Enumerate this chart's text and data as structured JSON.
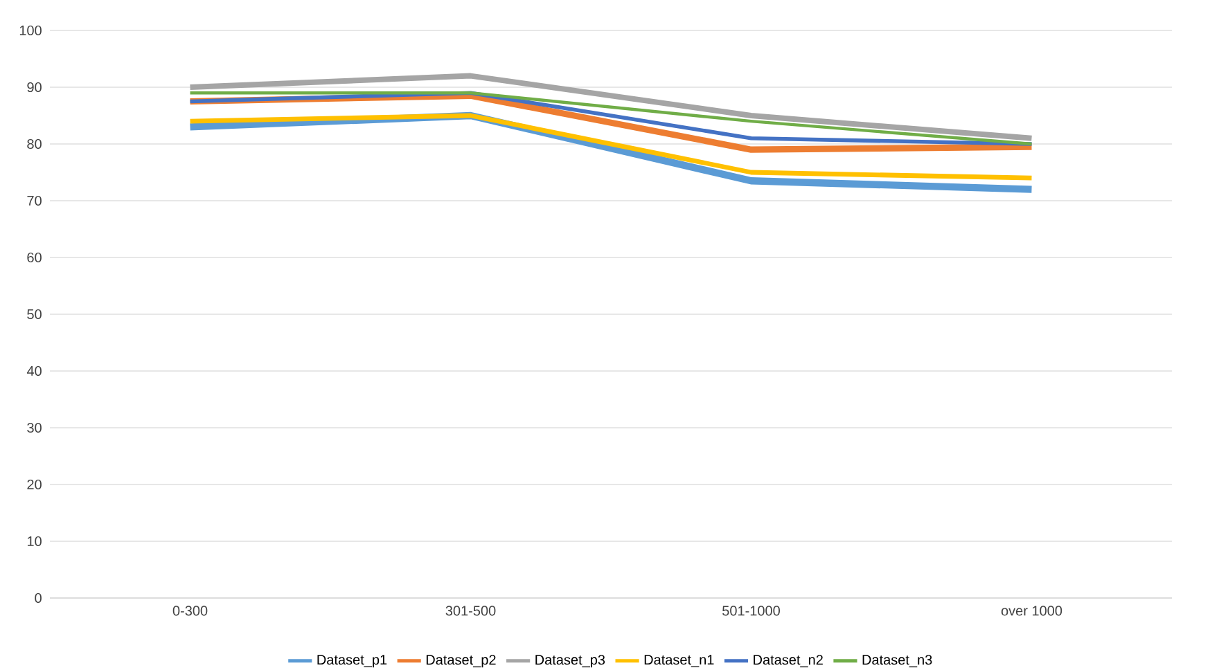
{
  "chart_data": {
    "type": "line",
    "categories": [
      "0-300",
      "301-500",
      "501-1000",
      "over 1000"
    ],
    "series": [
      {
        "name": "Dataset_p1",
        "color": "#5b9bd5",
        "values": [
          83,
          85,
          73.5,
          72
        ]
      },
      {
        "name": "Dataset_p2",
        "color": "#ed7d31",
        "values": [
          87.5,
          88.5,
          79,
          79.5
        ]
      },
      {
        "name": "Dataset_p3",
        "color": "#a5a5a5",
        "values": [
          90,
          92,
          85,
          81
        ]
      },
      {
        "name": "Dataset_n1",
        "color": "#ffc000",
        "values": [
          84,
          85,
          75,
          74
        ]
      },
      {
        "name": "Dataset_n2",
        "color": "#4472c4",
        "values": [
          87.5,
          89,
          81,
          80
        ]
      },
      {
        "name": "Dataset_n3",
        "color": "#70ad47",
        "values": [
          89,
          89,
          84,
          80
        ]
      }
    ],
    "ylim": [
      0,
      100
    ],
    "yticks": [
      0,
      10,
      20,
      30,
      40,
      50,
      60,
      70,
      80,
      90,
      100
    ],
    "grid": "y",
    "legend": "bottom",
    "marker": "none",
    "line_style": "solid"
  }
}
